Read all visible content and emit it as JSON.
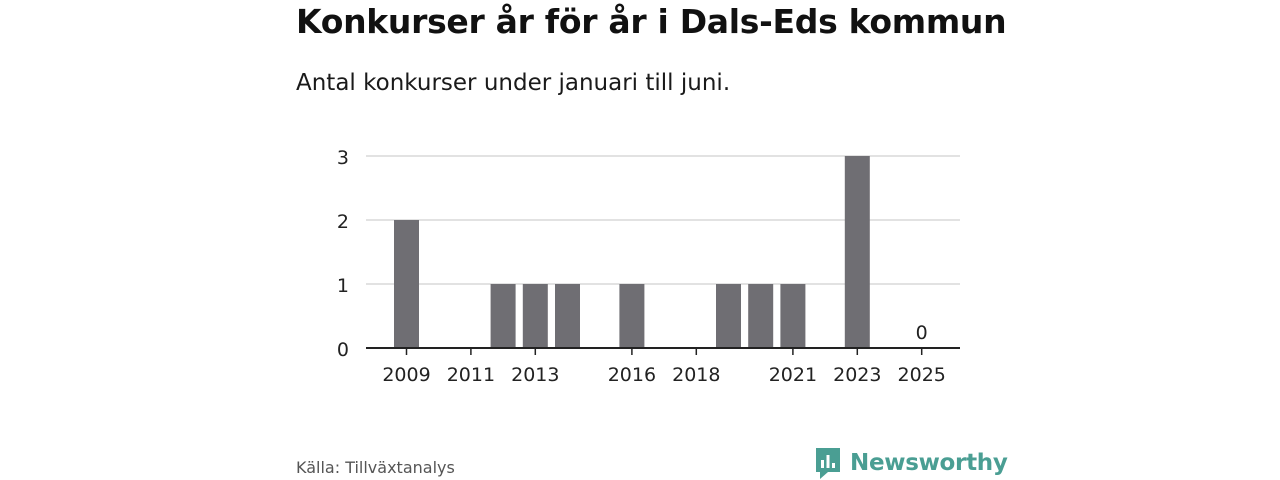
{
  "title": "Konkurser år för år i Dals-Eds kommun",
  "subtitle": "Antal konkurser under januari till juni.",
  "source": "Källa: Tillväxtanalys",
  "brand": {
    "name": "Newsworthy",
    "color": "#4a9e93",
    "icon": "newsworthy-logo-icon"
  },
  "colors": {
    "bar": "#6f6e73",
    "grid": "#d8d8d8",
    "axis": "#222222"
  },
  "chart_data": {
    "type": "bar",
    "categories": [
      "2009",
      "2010",
      "2011",
      "2012",
      "2013",
      "2014",
      "2015",
      "2016",
      "2017",
      "2018",
      "2019",
      "2020",
      "2021",
      "2022",
      "2023",
      "2024",
      "2025"
    ],
    "values": [
      2,
      0,
      0,
      1,
      1,
      1,
      0,
      1,
      0,
      0,
      1,
      1,
      1,
      0,
      3,
      0,
      0
    ],
    "tick_labels": [
      "2009",
      "2011",
      "2013",
      "2016",
      "2018",
      "2021",
      "2023",
      "2025"
    ],
    "y_ticks": [
      0,
      1,
      2,
      3
    ],
    "data_labels": [
      {
        "category": "2025",
        "text": "0"
      }
    ],
    "ylim": [
      0,
      3
    ],
    "grid": true,
    "xlabel": "",
    "ylabel": ""
  }
}
